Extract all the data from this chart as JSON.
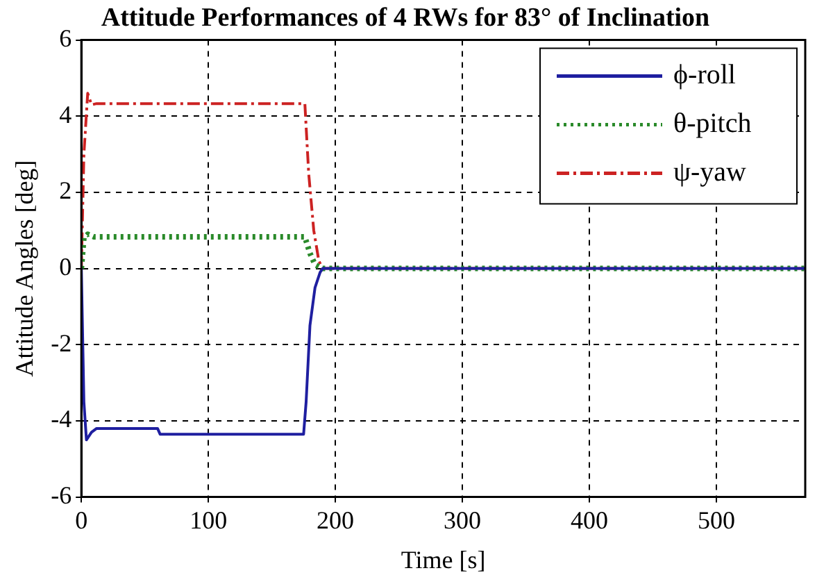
{
  "chart_data": {
    "type": "line",
    "title": "Attitude Performances of 4 RWs for 83° of Inclination",
    "xlabel": "Time [s]",
    "ylabel": "Attitude Angles [deg]",
    "xlim": [
      0,
      570
    ],
    "xticks": [
      0,
      100,
      200,
      300,
      400,
      500
    ],
    "ylim": [
      -6,
      6
    ],
    "yticks": [
      -6,
      -4,
      -2,
      0,
      2,
      4,
      6
    ],
    "grid": true,
    "legend": "top right",
    "series": [
      {
        "name": "ϕ-roll",
        "color": "#1f1fa0",
        "line_style": "solid",
        "x": [
          0,
          2,
          4,
          8,
          12,
          60,
          62,
          175,
          177,
          180,
          184,
          188,
          190,
          570
        ],
        "values": [
          0,
          -3.5,
          -4.5,
          -4.3,
          -4.2,
          -4.2,
          -4.35,
          -4.35,
          -3.5,
          -1.5,
          -0.5,
          -0.1,
          0,
          0
        ]
      },
      {
        "name": "θ-pitch",
        "color": "#2a8a2a",
        "line_style": "dotted",
        "x": [
          0,
          2,
          5,
          10,
          176,
          180,
          184,
          190,
          570
        ],
        "values": [
          0,
          0.8,
          0.9,
          0.83,
          0.83,
          0.4,
          0.1,
          0,
          0
        ]
      },
      {
        "name": "ψ-yaw",
        "color": "#cc2222",
        "line_style": "dashdot",
        "x": [
          0,
          2,
          5,
          8,
          12,
          176,
          179,
          183,
          187,
          190,
          570
        ],
        "values": [
          0,
          3,
          4.6,
          4.3,
          4.33,
          4.33,
          2.5,
          1,
          0.2,
          0,
          0
        ]
      }
    ]
  }
}
